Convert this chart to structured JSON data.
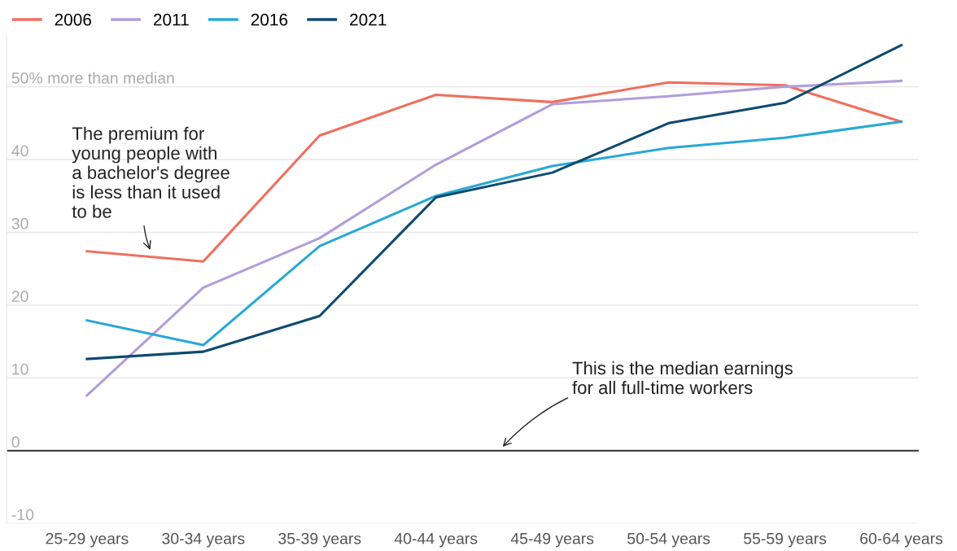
{
  "chart_data": {
    "type": "line",
    "categories": [
      "25-29 years",
      "30-34 years",
      "35-39 years",
      "40-44 years",
      "45-49 years",
      "50-54 years",
      "55-59 years",
      "60-64 years"
    ],
    "series": [
      {
        "name": "2006",
        "color": "#ef6f5e",
        "values": [
          27.4,
          26.0,
          43.3,
          48.9,
          47.9,
          50.6,
          50.2,
          45.2
        ]
      },
      {
        "name": "2011",
        "color": "#b19ddb",
        "values": [
          7.6,
          22.4,
          29.2,
          39.3,
          47.6,
          48.7,
          50.0,
          50.8
        ]
      },
      {
        "name": "2016",
        "color": "#28a8d6",
        "values": [
          17.9,
          14.5,
          28.1,
          35.0,
          39.1,
          41.6,
          43.0,
          45.2
        ]
      },
      {
        "name": "2021",
        "color": "#0d4a70",
        "values": [
          12.6,
          13.6,
          18.5,
          34.8,
          38.2,
          45.0,
          47.8,
          55.7
        ]
      }
    ],
    "ylim": [
      -10,
      57
    ],
    "yticks": [
      -10,
      0,
      10,
      20,
      30,
      {
        "value": 40,
        "label": "40"
      },
      {
        "value": 50,
        "label": "50% more than median"
      }
    ],
    "grid": "y",
    "legend": "top left",
    "marker": "none",
    "line_style": "solid",
    "ref_lines": [
      {
        "axis": "y",
        "value": 0,
        "label": null,
        "color": "#333333"
      }
    ],
    "annotations": [
      "The premium for\nyoung people with\na bachelor's degree\nis less than it used\nto be",
      "This is the median earnings\nfor all full-time workers"
    ]
  }
}
